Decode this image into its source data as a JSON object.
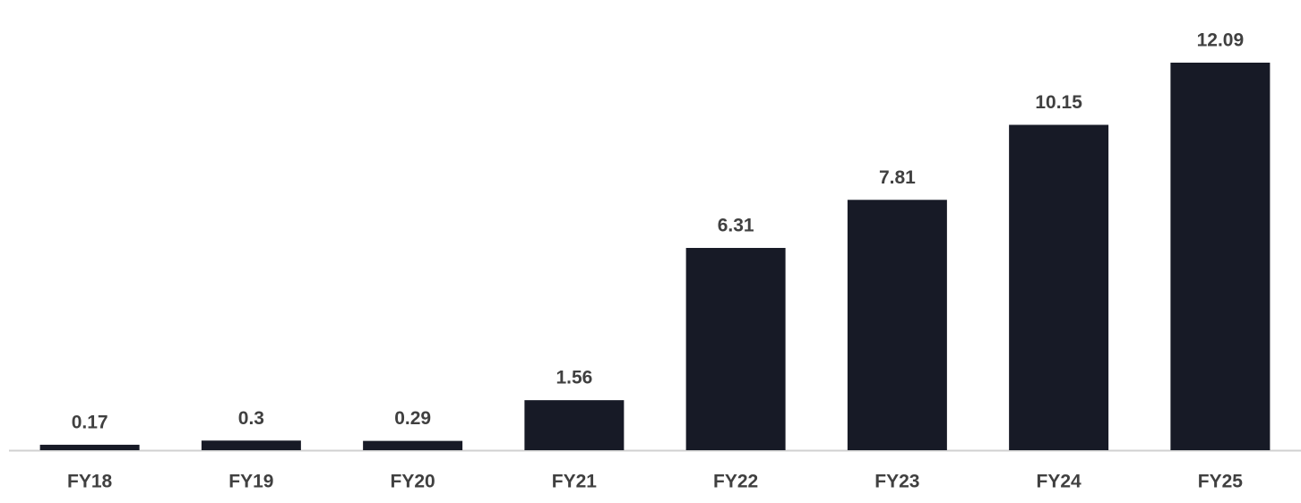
{
  "chart_data": {
    "type": "bar",
    "categories": [
      "FY18",
      "FY19",
      "FY20",
      "FY21",
      "FY22",
      "FY23",
      "FY24",
      "FY25"
    ],
    "values": [
      0.17,
      0.3,
      0.29,
      1.56,
      6.31,
      7.81,
      10.15,
      12.09
    ],
    "color": "#171a26"
  }
}
